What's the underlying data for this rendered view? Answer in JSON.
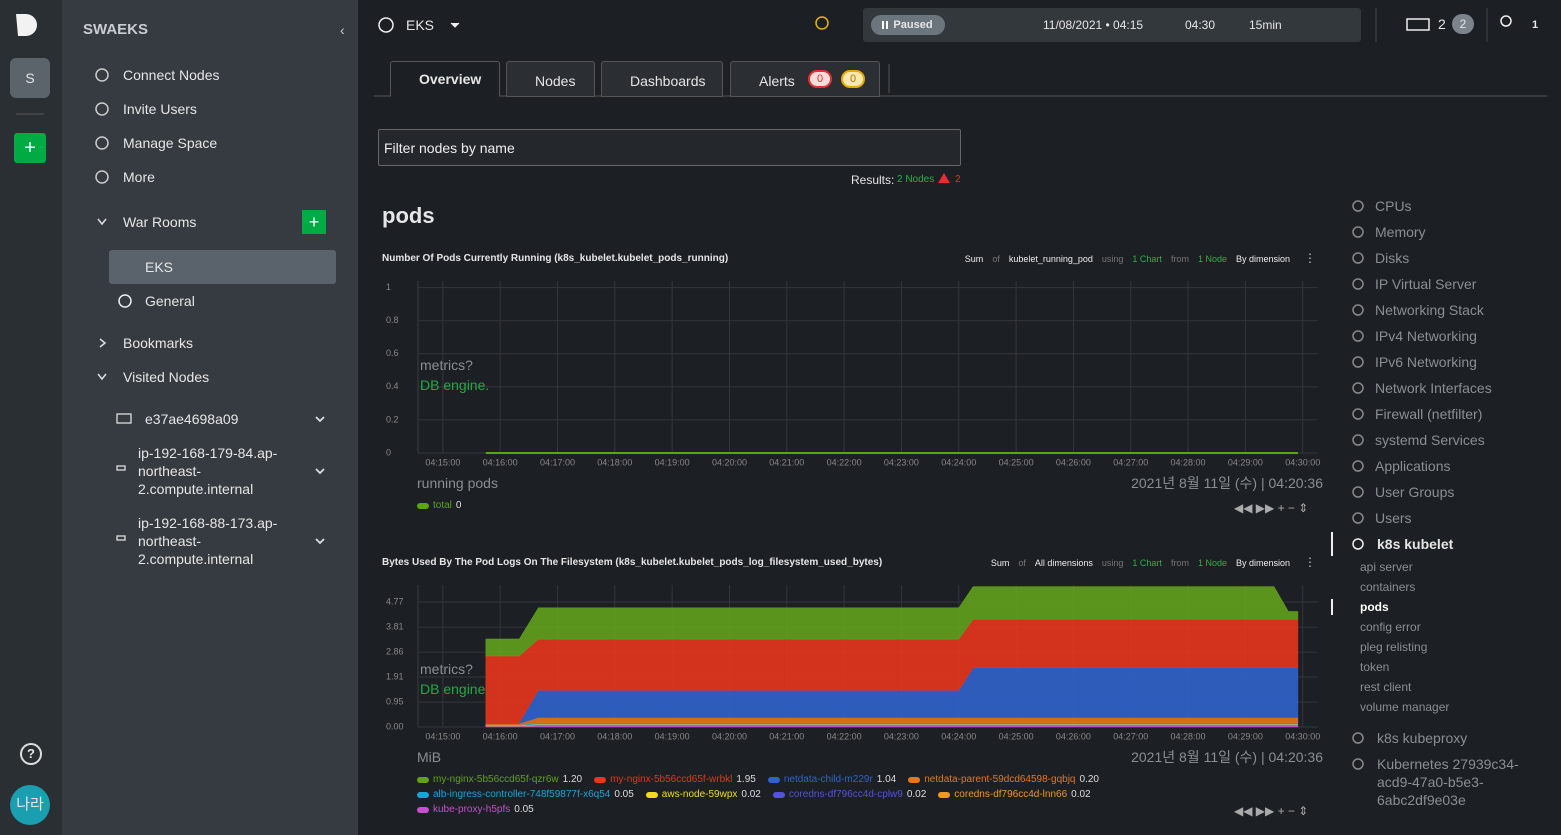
{
  "rail": {
    "space": "S",
    "add": "+",
    "help": "?",
    "user": "나라"
  },
  "sidebar": {
    "title": "SWAEKS",
    "menu": [
      "Connect Nodes",
      "Invite Users",
      "Manage Space",
      "More"
    ],
    "war_rooms": "War Rooms",
    "add": "+",
    "rooms": [
      "EKS",
      "General"
    ],
    "bookmarks": "Bookmarks",
    "visited": "Visited Nodes",
    "nodes": [
      "e37ae4698a09",
      "ip-192-168-179-84.ap-northeast-2.compute.internal",
      "ip-192-168-88-173.ap-northeast-2.compute.internal"
    ]
  },
  "topbar": {
    "room": "EKS",
    "status": "Paused",
    "start": "11/08/2021 • 04:15",
    "end": "04:30",
    "duration": "15min",
    "nodes": 2,
    "nodes_badge": 2,
    "users": 1
  },
  "tabs": [
    "Overview",
    "Nodes",
    "Dashboards",
    "Alerts"
  ],
  "alerts": {
    "critical": 0,
    "warning": 0
  },
  "filter": {
    "placeholder": "Filter nodes by name",
    "results": "Results:",
    "nodes": "2 Nodes",
    "errors": 2
  },
  "section": "pods",
  "charts": [
    {
      "type": "line",
      "title": "Number Of Pods Currently Running (k8s_kubelet.kubelet_pods_running)",
      "controls": [
        "Sum",
        "of",
        "kubelet_running_pod",
        "using",
        "1 Chart",
        "from",
        "1 Node",
        "By dimension"
      ],
      "overlay": [
        "metrics?",
        "DB engine."
      ],
      "units": "running pods",
      "timestamp": "2021년 8월 11일 (수) | 04:20:36",
      "xlim": [
        "04:14:34",
        "04:30:16"
      ],
      "xticks": [
        "04:15:00",
        "04:16:00",
        "04:17:00",
        "04:18:00",
        "04:19:00",
        "04:20:00",
        "04:21:00",
        "04:22:00",
        "04:23:00",
        "04:24:00",
        "04:25:00",
        "04:26:00",
        "04:27:00",
        "04:28:00",
        "04:29:00",
        "04:30:00"
      ],
      "ylim": [
        0,
        1.04
      ],
      "yticks": [
        0,
        0.2,
        0.4,
        0.6,
        0.8,
        1
      ],
      "grid": true,
      "x": [
        "04:15:45",
        "04:29:55"
      ],
      "series": [
        {
          "name": "total",
          "color": "#5aa70f",
          "values": [
            0,
            0
          ],
          "current": 0
        }
      ]
    },
    {
      "type": "area",
      "stacked": true,
      "title": "Bytes Used By The Pod Logs On The Filesystem (k8s_kubelet.kubelet_pods_log_filesystem_used_bytes)",
      "controls": [
        "Sum",
        "of",
        "All dimensions",
        "using",
        "1 Chart",
        "from",
        "1 Node",
        "By dimension"
      ],
      "overlay": [
        "metrics?",
        "DB engine"
      ],
      "units": "MiB",
      "timestamp": "2021년 8월 11일 (수) | 04:20:36",
      "xlim": [
        "04:14:34",
        "04:30:16"
      ],
      "xticks": [
        "04:15:00",
        "04:16:00",
        "04:17:00",
        "04:18:00",
        "04:19:00",
        "04:20:00",
        "04:21:00",
        "04:22:00",
        "04:23:00",
        "04:24:00",
        "04:25:00",
        "04:26:00",
        "04:27:00",
        "04:28:00",
        "04:29:00",
        "04:30:00"
      ],
      "ylim": [
        0,
        5.42
      ],
      "yticks": [
        {
          "value": 0,
          "label": "0.00"
        },
        0.95,
        1.91,
        2.86,
        3.81,
        4.77
      ],
      "grid": true,
      "x": [
        "04:15:45",
        "04:16:20",
        "04:16:40",
        "04:24:00",
        "04:24:15",
        "04:29:30",
        "04:29:45",
        "04:29:55"
      ],
      "series": [
        {
          "name": "my-nginx-5b56ccd65f-qzr6w",
          "color": "#63a11c",
          "values": [
            0.65,
            0.65,
            1.2,
            1.2,
            1.25,
            1.25,
            0.3,
            0.3
          ],
          "current": 1.2,
          "current_label": "1.20"
        },
        {
          "name": "my-nginx-5b56ccd65f-wrbkl",
          "color": "#e8351c",
          "values": [
            2.55,
            2.55,
            1.95,
            1.95,
            1.85,
            1.85,
            1.85,
            1.85
          ],
          "current": 1.95
        },
        {
          "name": "netdata-child-m229r",
          "color": "#3163cc",
          "values": [
            0.03,
            0.03,
            1.04,
            1.04,
            1.9,
            1.9,
            1.9,
            1.9
          ],
          "current": 1.04
        },
        {
          "name": "netdata-parent-59dcd64598-gqbjq",
          "color": "#e8761c",
          "values": [
            0.05,
            0.05,
            0.2,
            0.2,
            0.2,
            0.2,
            0.2,
            0.2
          ],
          "current": 0.2,
          "current_label": "0.20"
        },
        {
          "name": "alb-ingress-controller-748f59877f-x6q54",
          "color": "#1ca3d8",
          "values": [
            0.02,
            0.02,
            0.05,
            0.05,
            0.05,
            0.05,
            0.05,
            0.05
          ],
          "current": 0.05
        },
        {
          "name": "aws-node-59wpx",
          "color": "#f0dc1a",
          "values": [
            0.02,
            0.02,
            0.02,
            0.02,
            0.02,
            0.02,
            0.02,
            0.02
          ],
          "current": 0.02
        },
        {
          "name": "coredns-df796cc4d-cplw9",
          "color": "#5454d8",
          "values": [
            0.01,
            0.01,
            0.02,
            0.02,
            0.02,
            0.02,
            0.02,
            0.02
          ],
          "current": 0.02
        },
        {
          "name": "coredns-df796cc4d-lnn66",
          "color": "#f09a1c",
          "values": [
            0.01,
            0.01,
            0.02,
            0.02,
            0.02,
            0.02,
            0.02,
            0.02
          ],
          "current": 0.02
        },
        {
          "name": "kube-proxy-h5pfs",
          "color": "#c84fd0",
          "values": [
            0.02,
            0.02,
            0.05,
            0.05,
            0.05,
            0.05,
            0.05,
            0.05
          ],
          "current": 0.05
        }
      ]
    }
  ],
  "nav": {
    "before": [
      "CPUs",
      "Memory",
      "Disks",
      "IP Virtual Server",
      "Networking Stack",
      "IPv4 Networking",
      "IPv6 Networking",
      "Network Interfaces",
      "Firewall (netfilter)",
      "systemd Services",
      "Applications",
      "User Groups",
      "Users"
    ],
    "current": "k8s kubelet",
    "sub": [
      "api server",
      "containers",
      "pods",
      "config error",
      "pleg relisting",
      "token",
      "rest client",
      "volume manager"
    ],
    "after": [
      "k8s kubeproxy",
      "Kubernetes 27939c34-acd9-47a0-b5e3-6abc2df9e03e"
    ]
  }
}
